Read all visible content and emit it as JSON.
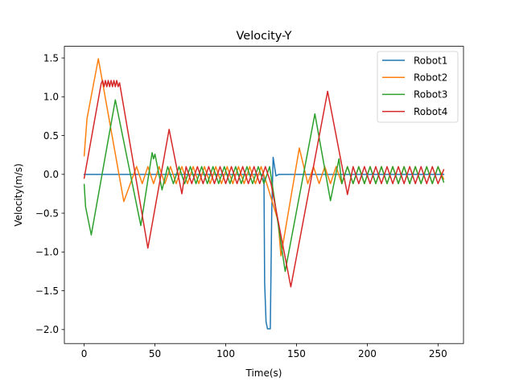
{
  "chart_data": {
    "type": "line",
    "title": "Velocity-Y",
    "xlabel": "Time(s)",
    "ylabel": "Velocity(m/s)",
    "xlim": [
      -14,
      268
    ],
    "ylim": [
      -2.18,
      1.65
    ],
    "xticks": [
      0,
      50,
      100,
      150,
      200,
      250
    ],
    "xtick_labels": [
      "0",
      "50",
      "100",
      "150",
      "200",
      "250"
    ],
    "yticks": [
      -2.0,
      -1.5,
      -1.0,
      -0.5,
      0.0,
      0.5,
      1.0,
      1.5
    ],
    "ytick_labels": [
      "−2.0",
      "−1.5",
      "−1.0",
      "−0.5",
      "0.0",
      "0.5",
      "1.0",
      "1.5"
    ],
    "grid": false,
    "legend_position": "top-right",
    "series": [
      {
        "name": "Robot1",
        "color": "#1f77b4",
        "points": [
          [
            0,
            0
          ],
          [
            126,
            0
          ],
          [
            127,
            -0.02
          ],
          [
            127.5,
            -1.4
          ],
          [
            128.5,
            -1.9
          ],
          [
            129.5,
            -1.99
          ],
          [
            131.5,
            -1.99
          ],
          [
            132.5,
            -0.5
          ],
          [
            133.5,
            0.22
          ],
          [
            134.5,
            0.1
          ],
          [
            135.5,
            -0.02
          ],
          [
            136.5,
            -0.01
          ],
          [
            137.5,
            0
          ],
          [
            254,
            0
          ]
        ]
      },
      {
        "name": "Robot2",
        "color": "#ff7f0e",
        "points": [
          [
            0,
            0.24
          ],
          [
            2,
            0.72
          ],
          [
            10,
            1.49
          ],
          [
            28,
            -0.35
          ],
          [
            37,
            0.1
          ],
          [
            41,
            -0.12
          ],
          [
            45,
            0.1
          ],
          [
            49,
            -0.12
          ],
          [
            53,
            0.1
          ],
          [
            57,
            -0.12
          ],
          [
            61,
            0.1
          ],
          [
            65,
            -0.12
          ],
          [
            69,
            0.1
          ],
          [
            73,
            -0.12
          ],
          [
            77,
            0.1
          ],
          [
            81,
            -0.12
          ],
          [
            85,
            0.1
          ],
          [
            89,
            -0.12
          ],
          [
            93,
            0.1
          ],
          [
            97,
            -0.12
          ],
          [
            101,
            0.1
          ],
          [
            105,
            -0.12
          ],
          [
            109,
            0.1
          ],
          [
            113,
            -0.12
          ],
          [
            117,
            0.1
          ],
          [
            121,
            -0.12
          ],
          [
            125,
            0.1
          ],
          [
            129,
            -0.12
          ],
          [
            137,
            -0.6
          ],
          [
            139,
            -1.05
          ],
          [
            152,
            0.34
          ],
          [
            158,
            -0.12
          ],
          [
            162,
            0.1
          ],
          [
            166,
            -0.12
          ],
          [
            170,
            0.1
          ],
          [
            174,
            -0.12
          ],
          [
            178,
            0.1
          ],
          [
            182,
            -0.12
          ],
          [
            186,
            0.1
          ],
          [
            190,
            -0.12
          ],
          [
            194,
            0.1
          ],
          [
            198,
            -0.12
          ],
          [
            202,
            0.1
          ],
          [
            206,
            -0.12
          ],
          [
            210,
            0.1
          ],
          [
            214,
            -0.12
          ],
          [
            218,
            0.1
          ],
          [
            222,
            -0.12
          ],
          [
            226,
            0.1
          ],
          [
            230,
            -0.12
          ],
          [
            234,
            0.1
          ],
          [
            238,
            -0.12
          ],
          [
            242,
            0.1
          ],
          [
            246,
            -0.12
          ],
          [
            250,
            0.1
          ],
          [
            254,
            -0.06
          ]
        ]
      },
      {
        "name": "Robot3",
        "color": "#2ca02c",
        "points": [
          [
            0,
            -0.13
          ],
          [
            1,
            -0.42
          ],
          [
            5,
            -0.78
          ],
          [
            22,
            0.96
          ],
          [
            40,
            -0.66
          ],
          [
            48,
            0.28
          ],
          [
            49,
            0.2
          ],
          [
            50,
            0.26
          ],
          [
            55,
            -0.2
          ],
          [
            59,
            0.1
          ],
          [
            63,
            -0.12
          ],
          [
            67,
            0.1
          ],
          [
            71,
            -0.12
          ],
          [
            75,
            0.1
          ],
          [
            79,
            -0.12
          ],
          [
            83,
            0.1
          ],
          [
            87,
            -0.12
          ],
          [
            91,
            0.1
          ],
          [
            95,
            -0.12
          ],
          [
            99,
            0.1
          ],
          [
            103,
            -0.12
          ],
          [
            107,
            0.1
          ],
          [
            111,
            -0.12
          ],
          [
            115,
            0.1
          ],
          [
            119,
            -0.12
          ],
          [
            123,
            0.1
          ],
          [
            127,
            -0.12
          ],
          [
            131,
            0.1
          ],
          [
            142,
            -1.25
          ],
          [
            163,
            0.78
          ],
          [
            174,
            -0.34
          ],
          [
            180,
            0.2
          ],
          [
            182,
            -0.12
          ],
          [
            186,
            0.1
          ],
          [
            190,
            -0.12
          ],
          [
            194,
            0.1
          ],
          [
            198,
            -0.12
          ],
          [
            202,
            0.1
          ],
          [
            206,
            -0.12
          ],
          [
            210,
            0.1
          ],
          [
            214,
            -0.12
          ],
          [
            218,
            0.1
          ],
          [
            222,
            -0.12
          ],
          [
            226,
            0.1
          ],
          [
            230,
            -0.12
          ],
          [
            234,
            0.1
          ],
          [
            238,
            -0.12
          ],
          [
            242,
            0.1
          ],
          [
            246,
            -0.12
          ],
          [
            250,
            0.1
          ],
          [
            254,
            -0.1
          ]
        ]
      },
      {
        "name": "Robot4",
        "color": "#d62728",
        "points": [
          [
            0,
            -0.05
          ],
          [
            12,
            1.17
          ],
          [
            13,
            1.21
          ],
          [
            14,
            1.13
          ],
          [
            15,
            1.21
          ],
          [
            16,
            1.13
          ],
          [
            17,
            1.21
          ],
          [
            18,
            1.13
          ],
          [
            19,
            1.21
          ],
          [
            20,
            1.13
          ],
          [
            21,
            1.21
          ],
          [
            22,
            1.13
          ],
          [
            23,
            1.21
          ],
          [
            24,
            1.13
          ],
          [
            25,
            1.18
          ],
          [
            45,
            -0.95
          ],
          [
            60,
            0.58
          ],
          [
            69,
            -0.25
          ],
          [
            72,
            0.1
          ],
          [
            76,
            -0.12
          ],
          [
            80,
            0.1
          ],
          [
            84,
            -0.12
          ],
          [
            88,
            0.1
          ],
          [
            92,
            -0.12
          ],
          [
            96,
            0.1
          ],
          [
            100,
            -0.12
          ],
          [
            104,
            0.1
          ],
          [
            108,
            -0.12
          ],
          [
            112,
            0.1
          ],
          [
            116,
            -0.12
          ],
          [
            120,
            0.1
          ],
          [
            124,
            -0.12
          ],
          [
            128,
            0.1
          ],
          [
            132,
            -0.12
          ],
          [
            146,
            -1.45
          ],
          [
            172,
            1.07
          ],
          [
            186,
            -0.26
          ],
          [
            190,
            0.1
          ],
          [
            194,
            -0.12
          ],
          [
            198,
            0.1
          ],
          [
            202,
            -0.12
          ],
          [
            206,
            0.1
          ],
          [
            210,
            -0.12
          ],
          [
            214,
            0.1
          ],
          [
            218,
            -0.12
          ],
          [
            222,
            0.1
          ],
          [
            226,
            -0.12
          ],
          [
            230,
            0.1
          ],
          [
            234,
            -0.12
          ],
          [
            238,
            0.1
          ],
          [
            242,
            -0.12
          ],
          [
            246,
            0.1
          ],
          [
            250,
            -0.12
          ],
          [
            254,
            0.06
          ]
        ]
      }
    ]
  }
}
